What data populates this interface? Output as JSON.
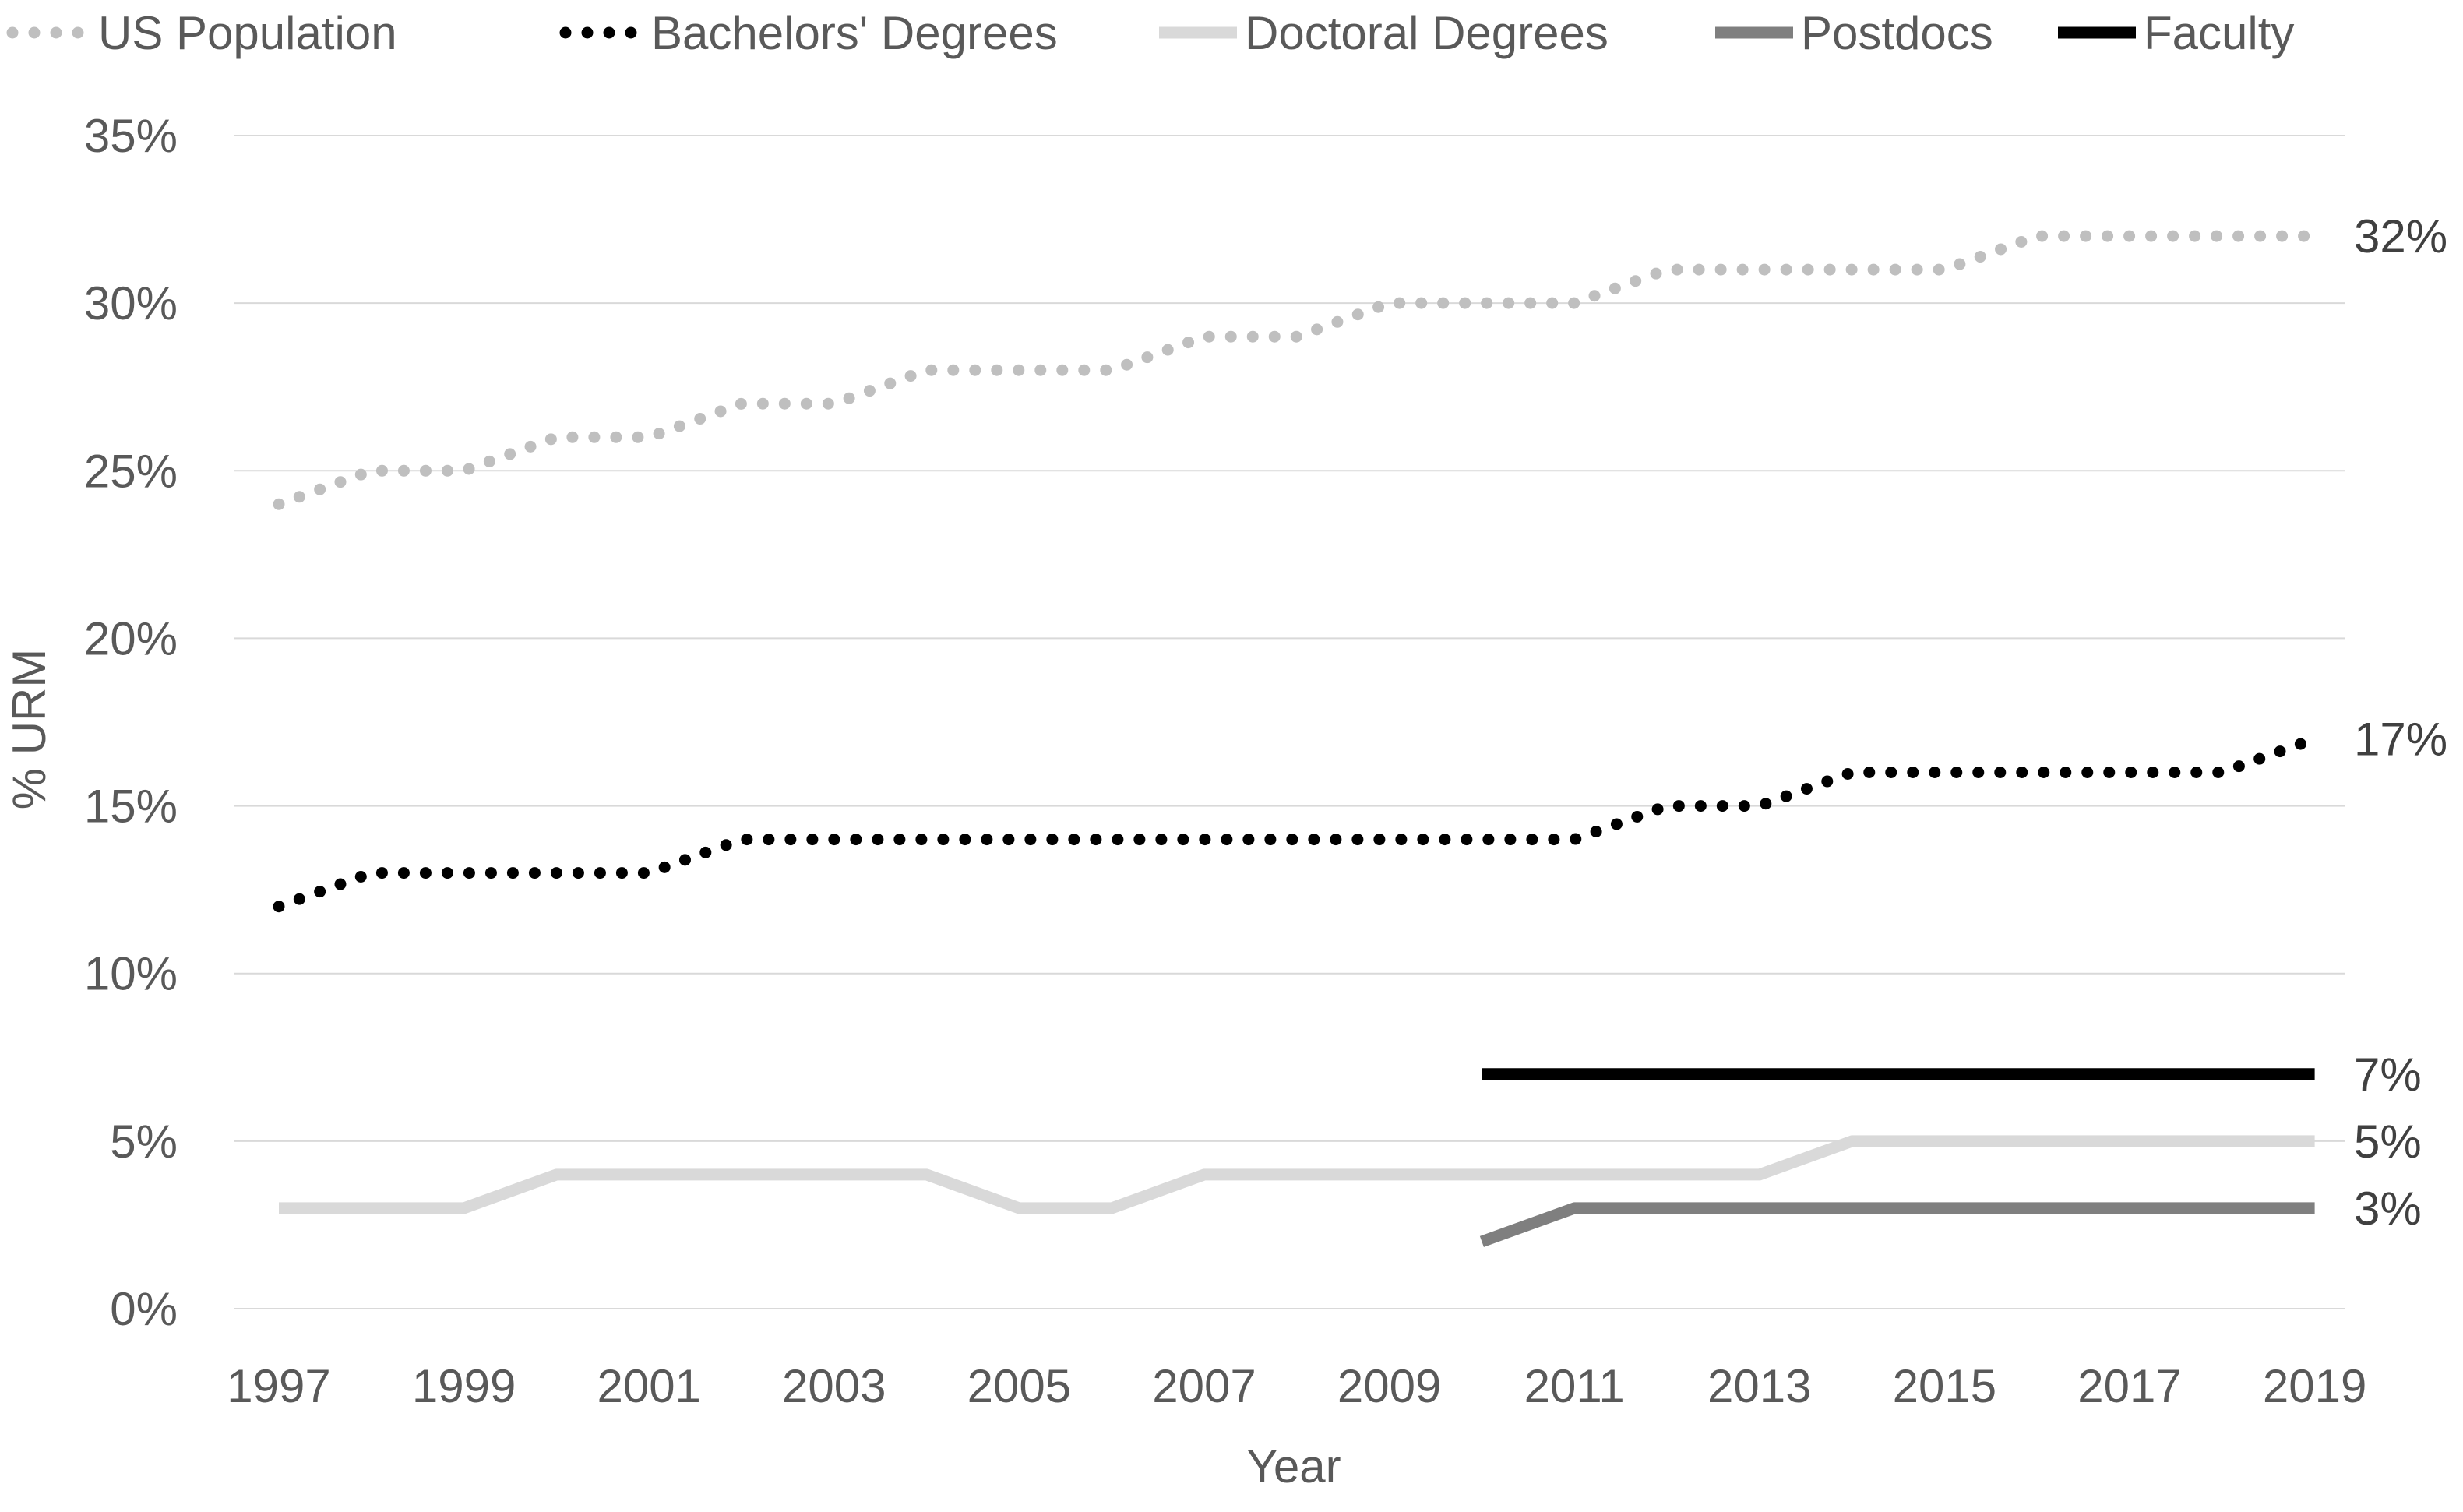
{
  "chart_data": {
    "type": "line",
    "xlabel": "Year",
    "ylabel": "% URM",
    "ylim": [
      0,
      35
    ],
    "y_ticks": [
      "0%",
      "5%",
      "10%",
      "15%",
      "20%",
      "25%",
      "30%",
      "35%"
    ],
    "x_ticks": [
      "1997",
      "1999",
      "2001",
      "2003",
      "2005",
      "2007",
      "2009",
      "2011",
      "2013",
      "2015",
      "2017",
      "2019"
    ],
    "x": [
      1997,
      1998,
      1999,
      2000,
      2001,
      2002,
      2003,
      2004,
      2005,
      2006,
      2007,
      2008,
      2009,
      2010,
      2011,
      2012,
      2013,
      2014,
      2015,
      2016,
      2017,
      2018,
      2019
    ],
    "grid": true,
    "legend_position": "top",
    "series": [
      {
        "name": "US Population",
        "style": "dotted",
        "color": "#bfbfbf",
        "values": [
          24,
          25,
          25,
          26,
          26,
          27,
          27,
          28,
          28,
          28,
          29,
          29,
          30,
          30,
          30,
          31,
          31,
          31,
          31,
          32,
          32,
          32,
          32
        ],
        "end_label": "32%"
      },
      {
        "name": "Bachelors' Degrees",
        "style": "dotted",
        "color": "#000000",
        "values": [
          12,
          13,
          13,
          13,
          13,
          14,
          14,
          14,
          14,
          14,
          14,
          14,
          14,
          14,
          14,
          15,
          15,
          16,
          16,
          16,
          16,
          16,
          17
        ],
        "end_label": "17%"
      },
      {
        "name": "Doctoral Degrees",
        "style": "solid",
        "color": "#d9d9d9",
        "values": [
          3,
          3,
          3,
          4,
          4,
          4,
          4,
          4,
          3,
          3,
          4,
          4,
          4,
          4,
          4,
          4,
          4,
          5,
          5,
          5,
          5,
          5,
          5
        ],
        "end_label": "5%"
      },
      {
        "name": "Postdocs",
        "style": "solid",
        "color": "#7f7f7f",
        "values": [
          null,
          null,
          null,
          null,
          null,
          null,
          null,
          null,
          null,
          null,
          null,
          null,
          null,
          2,
          3,
          3,
          3,
          3,
          3,
          3,
          3,
          3,
          3
        ],
        "end_label": "3%"
      },
      {
        "name": "Faculty",
        "style": "solid",
        "color": "#000000",
        "values": [
          null,
          null,
          null,
          null,
          null,
          null,
          null,
          null,
          null,
          null,
          null,
          null,
          null,
          7,
          7,
          7,
          7,
          7,
          7,
          7,
          7,
          7,
          7
        ],
        "end_label": "7%"
      }
    ]
  }
}
